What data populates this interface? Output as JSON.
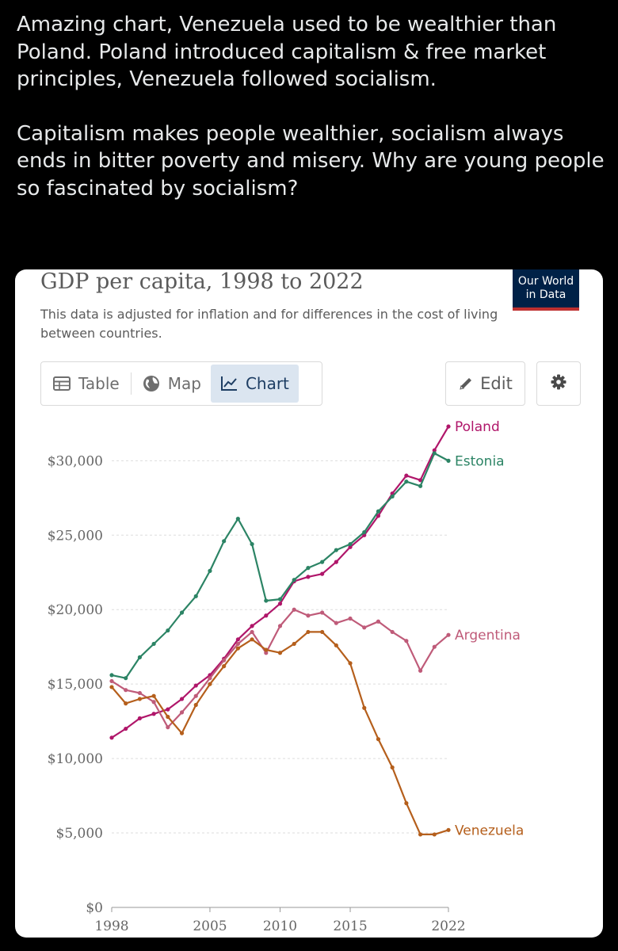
{
  "tweet": {
    "paragraph1": "Amazing chart, Venezuela used to be wealthier than Poland. Poland introduced capitalism & free market principles, Venezuela followed socialism.",
    "paragraph2": "Capitalism makes people wealthier, socialism always ends in bitter poverty and misery. Why are young people so fascinated by socialism?"
  },
  "logo": {
    "line1": "Our World",
    "line2": "in Data"
  },
  "tabs": [
    {
      "label": "Table",
      "icon": "table-icon"
    },
    {
      "label": "Map",
      "icon": "globe-icon"
    },
    {
      "label": "Chart",
      "icon": "line-chart-icon",
      "active": true
    }
  ],
  "edit_label": "Edit",
  "chart_data": {
    "type": "line",
    "title": "GDP per capita, 1998 to 2022",
    "subtitle": "This data is adjusted for inflation and for differences in the cost of living between countries.",
    "xlabel": "",
    "ylabel": "",
    "xlim": [
      1998,
      2022
    ],
    "ylim": [
      0,
      33000
    ],
    "yticks": [
      0,
      5000,
      10000,
      15000,
      20000,
      25000,
      30000
    ],
    "ytick_labels": [
      "$0",
      "$5,000",
      "$10,000",
      "$15,000",
      "$20,000",
      "$25,000",
      "$30,000"
    ],
    "xticks": [
      1998,
      2005,
      2010,
      2015,
      2022
    ],
    "xtick_labels": [
      "1998",
      "2005",
      "2010",
      "2015",
      "2022"
    ],
    "x": [
      1998,
      1999,
      2000,
      2001,
      2002,
      2003,
      2004,
      2005,
      2006,
      2007,
      2008,
      2009,
      2010,
      2011,
      2012,
      2013,
      2014,
      2015,
      2016,
      2017,
      2018,
      2019,
      2020,
      2021,
      2022
    ],
    "series": [
      {
        "name": "Poland",
        "color": "#b0166a",
        "values": [
          11400,
          12000,
          12700,
          13000,
          13300,
          14000,
          14900,
          15600,
          16700,
          18000,
          18900,
          19600,
          20400,
          21900,
          22200,
          22400,
          23200,
          24200,
          25000,
          26300,
          27800,
          29000,
          28700,
          30700,
          32300
        ]
      },
      {
        "name": "Estonia",
        "color": "#2c8465",
        "values": [
          15600,
          15400,
          16800,
          17700,
          18600,
          19800,
          20900,
          22600,
          24600,
          26100,
          24400,
          20600,
          20700,
          22000,
          22800,
          23200,
          24000,
          24400,
          25200,
          26600,
          27600,
          28600,
          28300,
          30500,
          30000
        ]
      },
      {
        "name": "Argentina",
        "color": "#bf5b79",
        "values": [
          15200,
          14600,
          14400,
          13800,
          12100,
          13100,
          14200,
          15400,
          16600,
          17700,
          18500,
          17100,
          18900,
          20000,
          19600,
          19800,
          19100,
          19400,
          18800,
          19200,
          18500,
          17900,
          15900,
          17500,
          18300
        ]
      },
      {
        "name": "Venezuela",
        "color": "#b55f1c",
        "values": [
          14800,
          13700,
          14000,
          14200,
          12800,
          11700,
          13600,
          15000,
          16200,
          17400,
          18000,
          17300,
          17100,
          17700,
          18500,
          18500,
          17600,
          16400,
          13400,
          11300,
          9400,
          7000,
          4900,
          4900,
          5200
        ]
      }
    ]
  }
}
